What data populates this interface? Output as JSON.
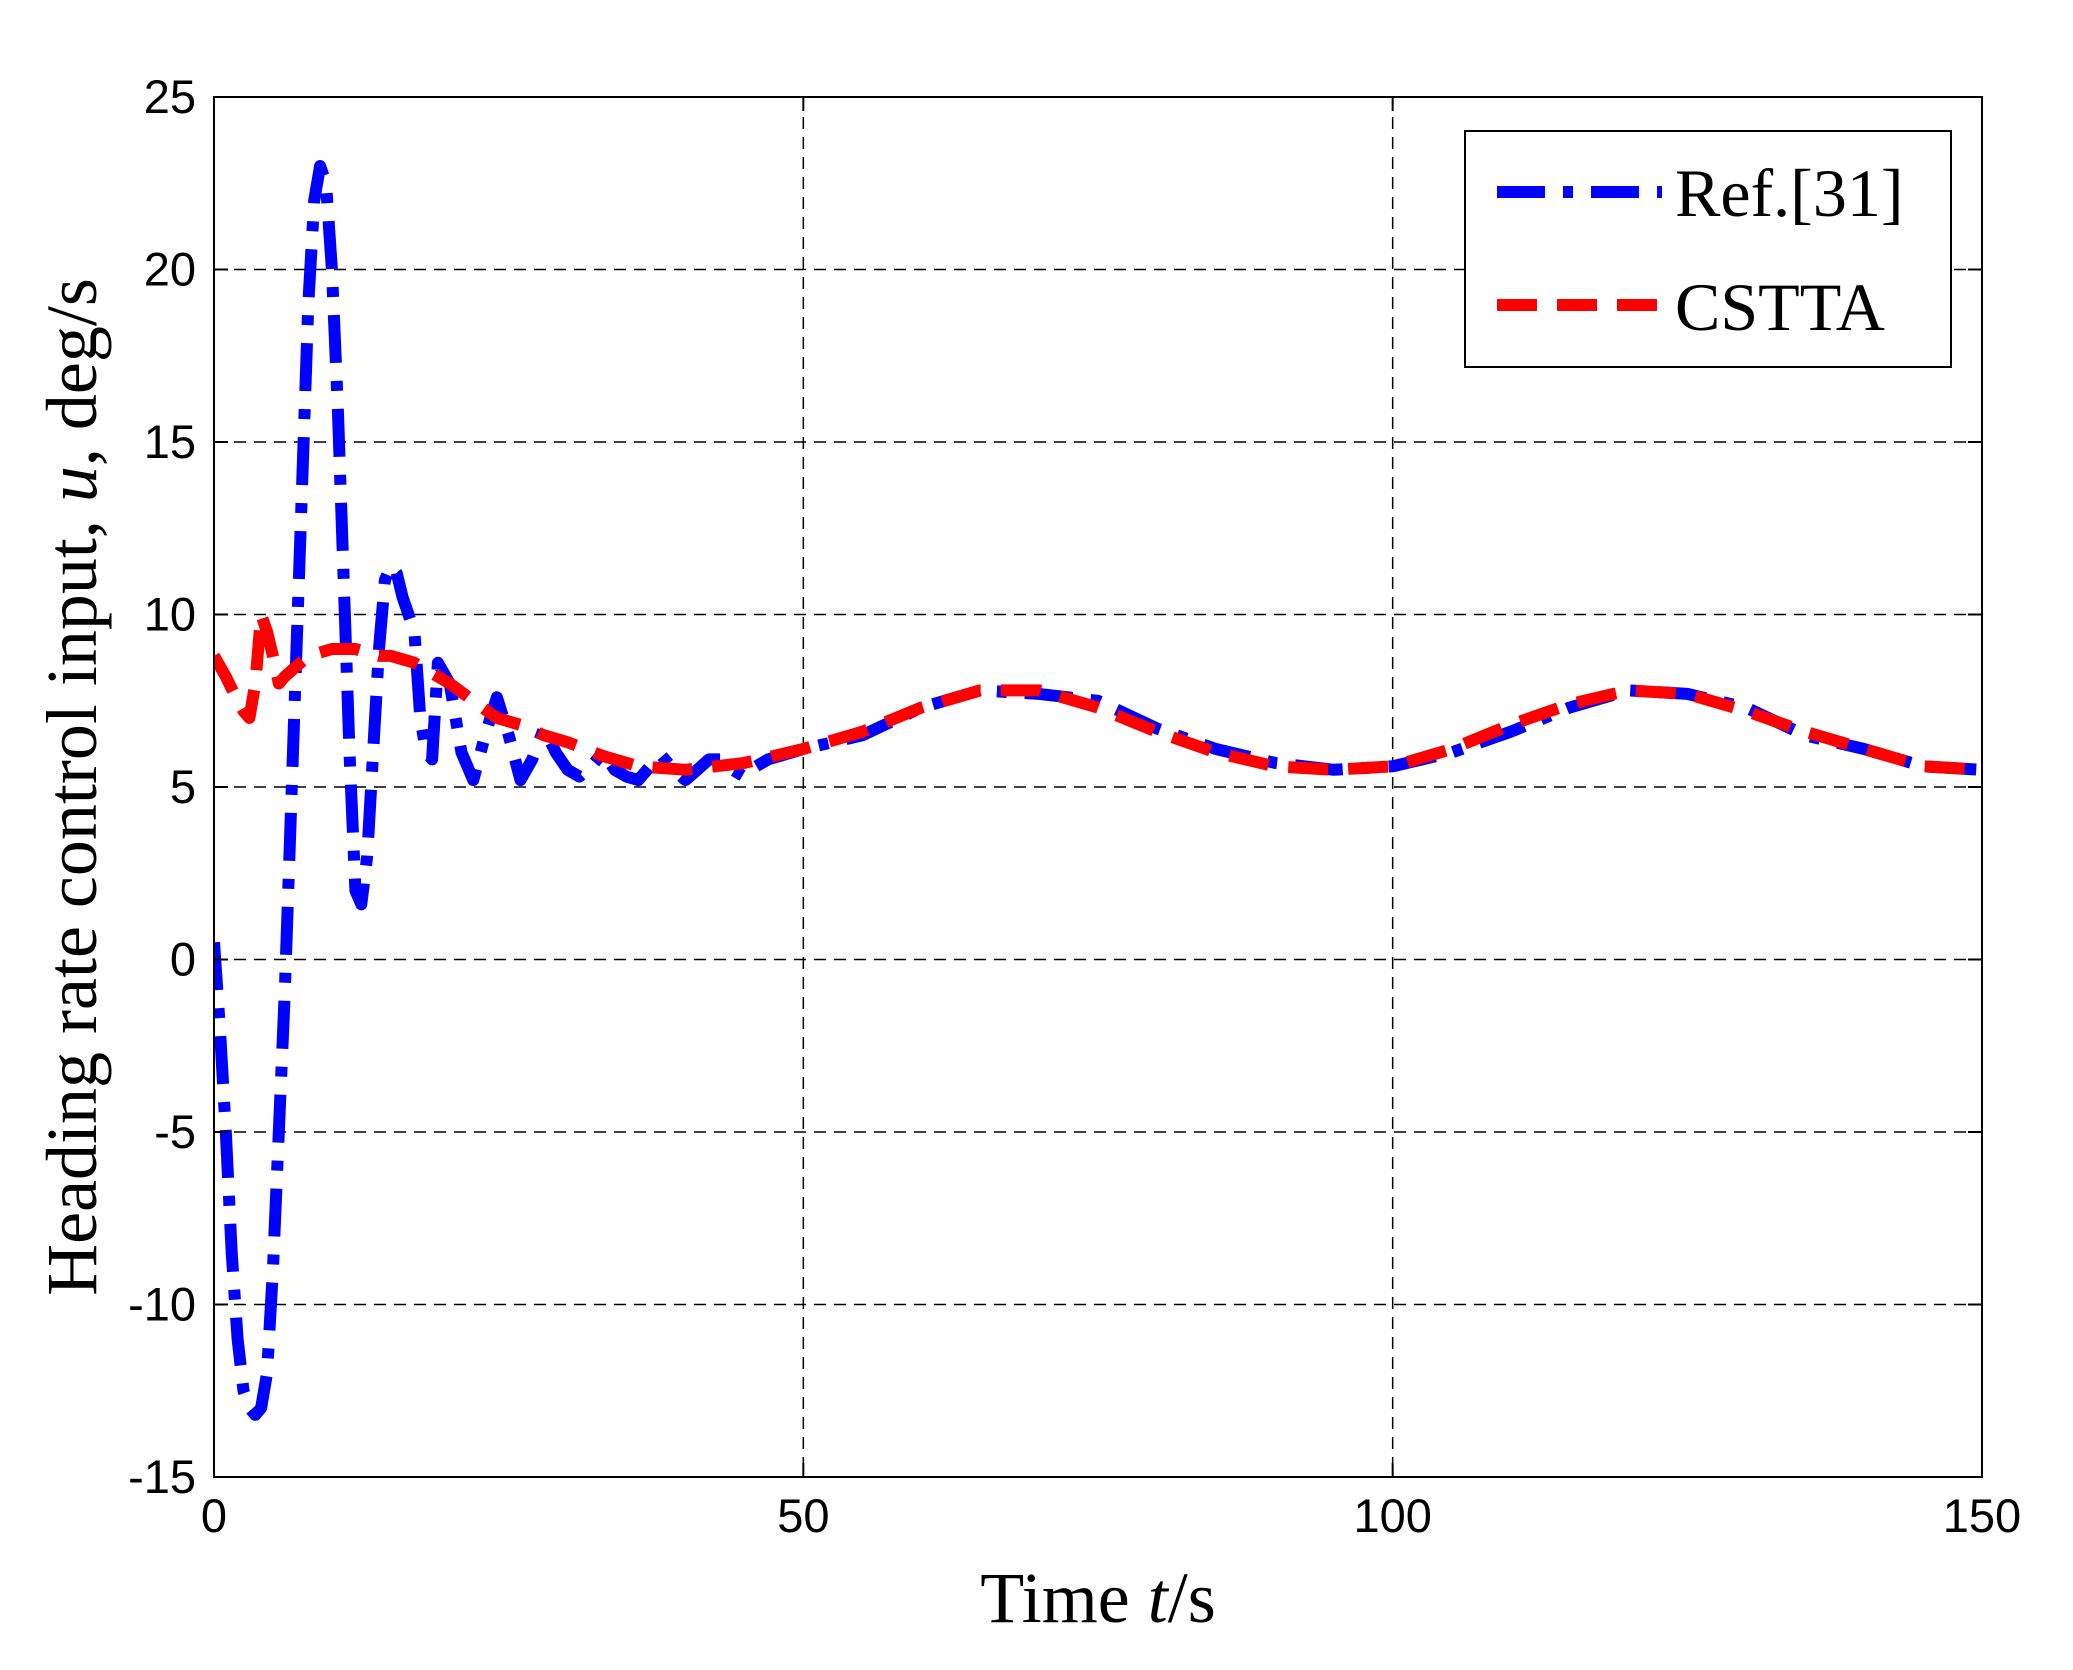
{
  "chart_data": {
    "type": "line",
    "title": "",
    "xlabel": {
      "prefix": "Time ",
      "var": "t",
      "suffix": "/s"
    },
    "ylabel": {
      "prefix": "Heading rate control input, ",
      "var": "u",
      "suffix": ",  deg/s"
    },
    "xlim": [
      0,
      150
    ],
    "ylim": [
      -15,
      25
    ],
    "xticks": [
      0,
      50,
      100,
      150
    ],
    "yticks": [
      -15,
      -10,
      -5,
      0,
      5,
      10,
      15,
      20,
      25
    ],
    "grid": true,
    "legend_position": "top-right",
    "series": [
      {
        "name": "Ref.[31]",
        "color": "#0000ff",
        "style": "dash-dot",
        "x": [
          0,
          0.5,
          1,
          1.5,
          2,
          2.5,
          3,
          3.5,
          4,
          4.5,
          5,
          5.5,
          6,
          6.5,
          7,
          7.5,
          8,
          8.5,
          9,
          9.5,
          10,
          10.5,
          11,
          11.5,
          12,
          12.5,
          13,
          13.5,
          14,
          14.5,
          15,
          15.5,
          16,
          16.5,
          17,
          17.5,
          18,
          18.5,
          19,
          20,
          21,
          22,
          23,
          24,
          25,
          26,
          27,
          28,
          29,
          30,
          31,
          32,
          33,
          34,
          35,
          36,
          37,
          38,
          39,
          40,
          41,
          42,
          43,
          44,
          45,
          46,
          47,
          48,
          50,
          55,
          60,
          65,
          70,
          75,
          80,
          85,
          90,
          95,
          100,
          105,
          110,
          115,
          120,
          125,
          130,
          135,
          140,
          145,
          150
        ],
        "y": [
          0.5,
          -2,
          -5,
          -8.5,
          -11,
          -12.5,
          -13,
          -13.2,
          -13,
          -12,
          -9,
          -5,
          -1,
          4,
          9,
          14,
          19,
          22,
          23,
          22.5,
          20,
          16,
          11,
          6,
          2,
          1.6,
          3,
          6,
          9,
          11,
          11.4,
          11.2,
          10.5,
          10,
          9.5,
          7,
          6,
          5.8,
          8.6,
          8,
          6,
          5.2,
          6.5,
          7.6,
          6.5,
          5.2,
          5.8,
          6.7,
          6,
          5.5,
          5.3,
          5.6,
          6,
          5.5,
          5.3,
          5.2,
          5.6,
          5.9,
          5.5,
          5.2,
          5.5,
          5.8,
          5.8,
          5.5,
          5.3,
          5.6,
          5.8,
          5.9,
          6.1,
          6.5,
          7.3,
          7.8,
          7.7,
          7.5,
          6.7,
          6.1,
          5.7,
          5.5,
          5.6,
          6,
          6.6,
          7.3,
          7.8,
          7.7,
          7.3,
          6.5,
          6.1,
          5.6,
          5.5
        ]
      },
      {
        "name": "CSTTA",
        "color": "#ff0000",
        "style": "dashed",
        "x": [
          0,
          1,
          2,
          2.5,
          3,
          3.5,
          4,
          4.5,
          5,
          5.5,
          6,
          7,
          8,
          9,
          10,
          11,
          12,
          13,
          14,
          15,
          16,
          17,
          18,
          19,
          20,
          22,
          24,
          26,
          28,
          30,
          33,
          36,
          40,
          45,
          50,
          55,
          60,
          65,
          70,
          75,
          80,
          85,
          90,
          95,
          100,
          105,
          110,
          115,
          120,
          125,
          130,
          135,
          140,
          145,
          150
        ],
        "y": [
          8.8,
          8.2,
          7.5,
          7.2,
          7,
          8,
          10,
          9.5,
          8.8,
          8,
          8.2,
          8.5,
          8.8,
          8.9,
          9,
          9,
          9,
          8.9,
          8.8,
          8.8,
          8.7,
          8.6,
          8.4,
          8.2,
          8,
          7.5,
          7,
          6.8,
          6.5,
          6.3,
          5.9,
          5.6,
          5.5,
          5.7,
          6.1,
          6.6,
          7.3,
          7.8,
          7.8,
          7.3,
          6.6,
          6,
          5.6,
          5.5,
          5.6,
          6.1,
          6.8,
          7.4,
          7.8,
          7.7,
          7.2,
          6.6,
          6.1,
          5.6,
          5.5
        ]
      }
    ]
  }
}
